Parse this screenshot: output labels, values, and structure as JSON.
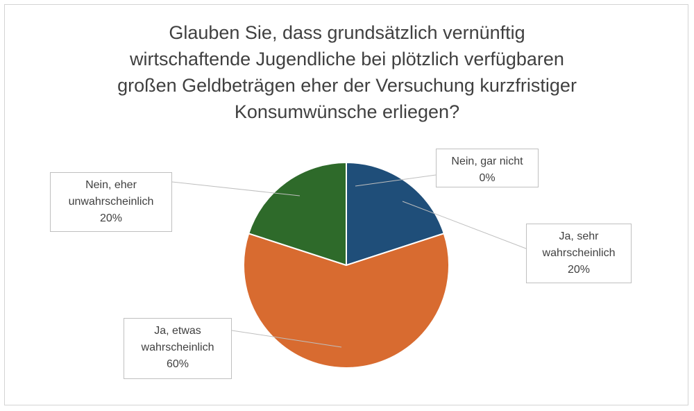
{
  "chart_data": {
    "type": "pie",
    "title_lines": [
      "Glauben Sie, dass grundsätzlich vernünftig",
      "wirtschaftende Jugendliche bei plötzlich verfügbaren",
      "großen Geldbeträgen eher der Versuchung kurzfristiger",
      "Konsumwünsche erliegen?"
    ],
    "slices": [
      {
        "label_lines": [
          "Nein, gar nicht"
        ],
        "value_label": "0%",
        "value": 0,
        "color": "#1f4e79"
      },
      {
        "label_lines": [
          "Ja, sehr",
          "wahrscheinlich"
        ],
        "value_label": "20%",
        "value": 20,
        "color": "#1f4e79"
      },
      {
        "label_lines": [
          "Ja, etwas",
          "wahrscheinlich"
        ],
        "value_label": "60%",
        "value": 60,
        "color": "#d86b30"
      },
      {
        "label_lines": [
          "Nein, eher",
          "unwahrscheinlich"
        ],
        "value_label": "20%",
        "value": 20,
        "color": "#2e6a2a"
      }
    ]
  }
}
